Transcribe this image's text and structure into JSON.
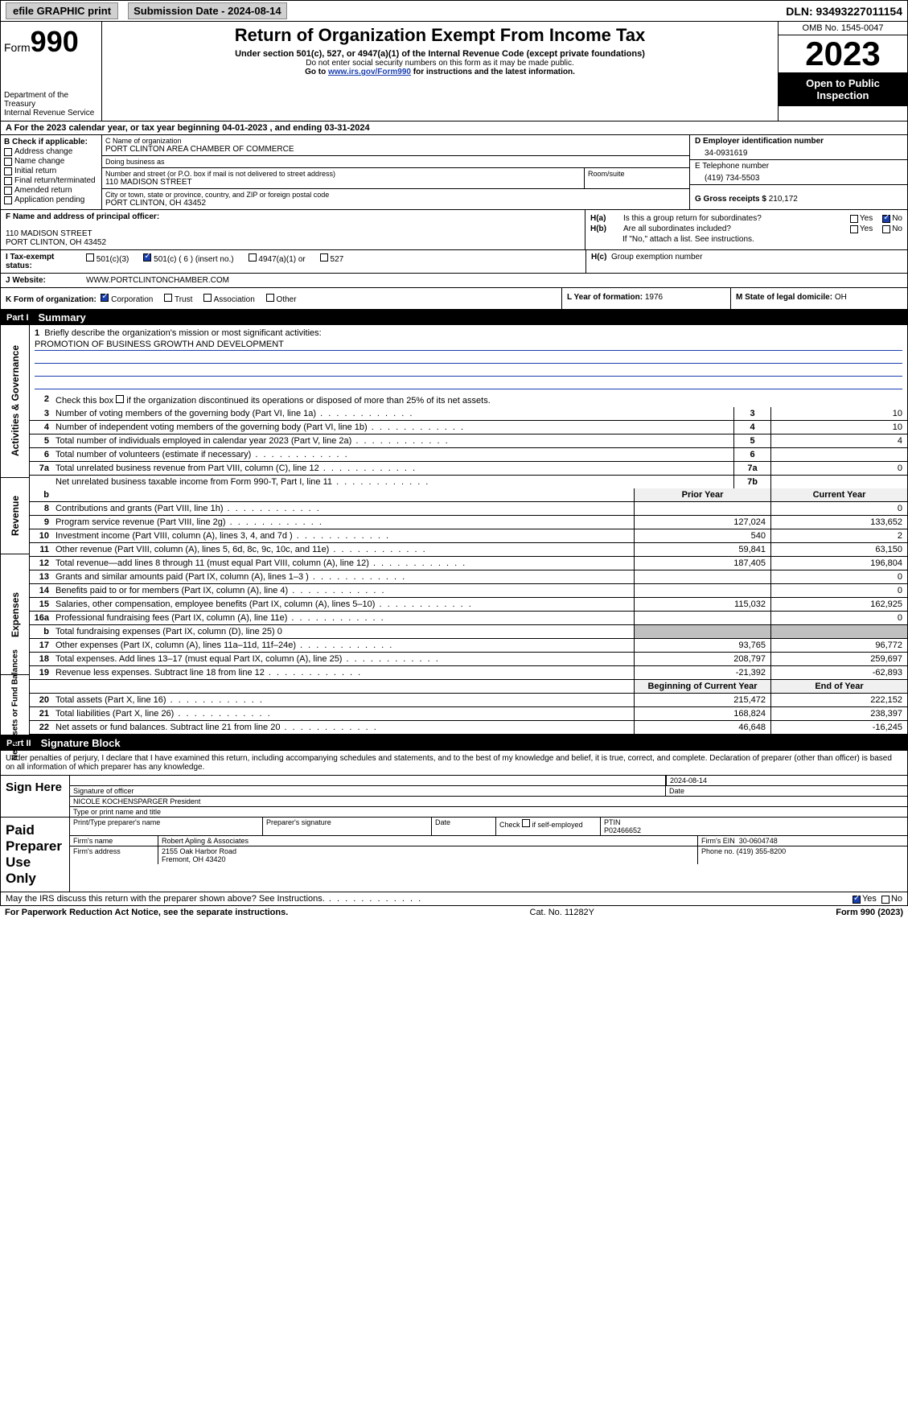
{
  "colors": {
    "accent": "#1a3fb0",
    "black": "#000000",
    "grey_btn": "#d0d0d0",
    "shaded": "#c0c0c0",
    "hdr_bg": "#f0f0f0"
  },
  "topbar": {
    "efile": "efile GRAPHIC print",
    "submission": "Submission Date - 2024-08-14",
    "dln": "DLN: 93493227011154"
  },
  "header": {
    "form_word": "Form",
    "form_num": "990",
    "title": "Return of Organization Exempt From Income Tax",
    "sub": "Under section 501(c), 527, or 4947(a)(1) of the Internal Revenue Code (except private foundations)",
    "ssn": "Do not enter social security numbers on this form as it may be made public.",
    "goto_pre": "Go to ",
    "goto_link": "www.irs.gov/Form990",
    "goto_post": " for instructions and the latest information.",
    "dept1": "Department of the Treasury",
    "dept2": "Internal Revenue Service",
    "omb": "OMB No. 1545-0047",
    "year": "2023",
    "open": "Open to Public Inspection"
  },
  "line_a": "A For the 2023 calendar year, or tax year beginning 04-01-2023    , and ending 03-31-2024",
  "sec_b": {
    "hdr": "B Check if applicable:",
    "items": [
      "Address change",
      "Name change",
      "Initial return",
      "Final return/terminated",
      "Amended return",
      "Application pending"
    ]
  },
  "sec_c": {
    "name_lbl": "C Name of organization",
    "name_val": "PORT CLINTON AREA CHAMBER OF COMMERCE",
    "dba_lbl": "Doing business as",
    "dba_val": "",
    "street_lbl": "Number and street (or P.O. box if mail is not delivered to street address)",
    "street_val": "110 MADISON STREET",
    "room_lbl": "Room/suite",
    "city_lbl": "City or town, state or province, country, and ZIP or foreign postal code",
    "city_val": "PORT CLINTON, OH  43452"
  },
  "sec_d": {
    "lbl": "D Employer identification number",
    "val": "34-0931619"
  },
  "sec_e": {
    "lbl": "E Telephone number",
    "val": "(419) 734-5503"
  },
  "sec_g": {
    "lbl": "G Gross receipts $",
    "val": "210,172"
  },
  "sec_f": {
    "lbl": "F  Name and address of principal officer:",
    "l1": "110 MADISON STREET",
    "l2": "PORT CLINTON, OH  43452"
  },
  "sec_h": {
    "a_lbl": "H(a)",
    "a_txt": "Is this a group return for subordinates?",
    "a_yes": false,
    "a_no": true,
    "b_lbl": "H(b)",
    "b_txt": "Are all subordinates included?",
    "b_yes": false,
    "b_no": false,
    "b_note": "If \"No,\" attach a list. See instructions.",
    "c_lbl": "H(c)",
    "c_txt": "Group exemption number",
    "c_val": ""
  },
  "tax_status": {
    "lbl": "I    Tax-exempt status:",
    "opts": [
      "501(c)(3)",
      "501(c) ( 6 ) (insert no.)",
      "4947(a)(1) or",
      "527"
    ],
    "checked_idx": 1
  },
  "website": {
    "lbl": "J    Website:",
    "val": "WWW.PORTCLINTONCHAMBER.COM"
  },
  "sec_k": {
    "lbl": "K Form of organization:",
    "opts": [
      "Corporation",
      "Trust",
      "Association",
      "Other"
    ],
    "checked_idx": 0
  },
  "sec_l": {
    "lbl": "L Year of formation:",
    "val": "1976"
  },
  "sec_m": {
    "lbl": "M State of legal domicile:",
    "val": "OH"
  },
  "part1": {
    "label": "Part I",
    "title": "Summary",
    "side_ag": "Activities & Governance",
    "side_rev": "Revenue",
    "side_exp": "Expenses",
    "side_na": "Net Assets or Fund Balances",
    "l1_lbl": "Briefly describe the organization's mission or most significant activities:",
    "l1_val": "PROMOTION OF BUSINESS GROWTH AND DEVELOPMENT",
    "l2": "Check this box      if the organization discontinued its operations or disposed of more than 25% of its net assets.",
    "rows_top": [
      {
        "n": "3",
        "d": "Number of voting members of the governing body (Part VI, line 1a)",
        "bn": "3",
        "v": "10"
      },
      {
        "n": "4",
        "d": "Number of independent voting members of the governing body (Part VI, line 1b)",
        "bn": "4",
        "v": "10"
      },
      {
        "n": "5",
        "d": "Total number of individuals employed in calendar year 2023 (Part V, line 2a)",
        "bn": "5",
        "v": "4"
      },
      {
        "n": "6",
        "d": "Total number of volunteers (estimate if necessary)",
        "bn": "6",
        "v": ""
      },
      {
        "n": "7a",
        "d": "Total unrelated business revenue from Part VIII, column (C), line 12",
        "bn": "7a",
        "v": "0"
      },
      {
        "n": "",
        "d": "Net unrelated business taxable income from Form 990-T, Part I, line 11",
        "bn": "7b",
        "v": ""
      }
    ],
    "col_hdrs": {
      "b": "b",
      "prior": "Prior Year",
      "curr": "Current Year"
    },
    "rev_rows": [
      {
        "n": "8",
        "d": "Contributions and grants (Part VIII, line 1h)",
        "p": "",
        "c": "0"
      },
      {
        "n": "9",
        "d": "Program service revenue (Part VIII, line 2g)",
        "p": "127,024",
        "c": "133,652"
      },
      {
        "n": "10",
        "d": "Investment income (Part VIII, column (A), lines 3, 4, and 7d )",
        "p": "540",
        "c": "2"
      },
      {
        "n": "11",
        "d": "Other revenue (Part VIII, column (A), lines 5, 6d, 8c, 9c, 10c, and 11e)",
        "p": "59,841",
        "c": "63,150"
      },
      {
        "n": "12",
        "d": "Total revenue—add lines 8 through 11 (must equal Part VIII, column (A), line 12)",
        "p": "187,405",
        "c": "196,804"
      }
    ],
    "exp_rows": [
      {
        "n": "13",
        "d": "Grants and similar amounts paid (Part IX, column (A), lines 1–3 )",
        "p": "",
        "c": "0"
      },
      {
        "n": "14",
        "d": "Benefits paid to or for members (Part IX, column (A), line 4)",
        "p": "",
        "c": "0"
      },
      {
        "n": "15",
        "d": "Salaries, other compensation, employee benefits (Part IX, column (A), lines 5–10)",
        "p": "115,032",
        "c": "162,925"
      },
      {
        "n": "16a",
        "d": "Professional fundraising fees (Part IX, column (A), line 11e)",
        "p": "",
        "c": "0"
      },
      {
        "n": "b",
        "d": "Total fundraising expenses (Part IX, column (D), line 25) 0",
        "p": "SHADED",
        "c": "SHADED"
      },
      {
        "n": "17",
        "d": "Other expenses (Part IX, column (A), lines 11a–11d, 11f–24e)",
        "p": "93,765",
        "c": "96,772"
      },
      {
        "n": "18",
        "d": "Total expenses. Add lines 13–17 (must equal Part IX, column (A), line 25)",
        "p": "208,797",
        "c": "259,697"
      },
      {
        "n": "19",
        "d": "Revenue less expenses. Subtract line 18 from line 12",
        "p": "-21,392",
        "c": "-62,893"
      }
    ],
    "na_hdrs": {
      "p": "Beginning of Current Year",
      "c": "End of Year"
    },
    "na_rows": [
      {
        "n": "20",
        "d": "Total assets (Part X, line 16)",
        "p": "215,472",
        "c": "222,152"
      },
      {
        "n": "21",
        "d": "Total liabilities (Part X, line 26)",
        "p": "168,824",
        "c": "238,397"
      },
      {
        "n": "22",
        "d": "Net assets or fund balances. Subtract line 21 from line 20",
        "p": "46,648",
        "c": "-16,245"
      }
    ]
  },
  "part2": {
    "label": "Part II",
    "title": "Signature Block"
  },
  "penalty": "Under penalties of perjury, I declare that I have examined this return, including accompanying schedules and statements, and to the best of my knowledge and belief, it is true, correct, and complete. Declaration of preparer (other than officer) is based on all information of which preparer has any knowledge.",
  "sign": {
    "lbl": "Sign Here",
    "date": "2024-08-14",
    "sig_lbl": "Signature of officer",
    "date_lbl": "Date",
    "name": "NICOLE KOCHENSPARGER  President",
    "name_lbl": "Type or print name and title"
  },
  "preparer": {
    "lbl": "Paid Preparer Use Only",
    "h1": "Print/Type preparer's name",
    "h2": "Preparer's signature",
    "h3": "Date",
    "h4_pre": "Check",
    "h4_post": "if self-employed",
    "h5": "PTIN",
    "ptin": "P02466652",
    "firm_lbl": "Firm's name",
    "firm": "Robert Apling & Associates",
    "ein_lbl": "Firm's EIN",
    "ein": "30-0604748",
    "addr_lbl": "Firm's address",
    "addr1": "2155 Oak Harbor Road",
    "addr2": "Fremont, OH  43420",
    "phone_lbl": "Phone no.",
    "phone": "(419) 355-8200"
  },
  "discuss": {
    "txt": "May the IRS discuss this return with the preparer shown above? See Instructions.",
    "yes": true,
    "no": false
  },
  "footer": {
    "l": "For Paperwork Reduction Act Notice, see the separate instructions.",
    "m": "Cat. No. 11282Y",
    "r": "Form 990 (2023)"
  }
}
